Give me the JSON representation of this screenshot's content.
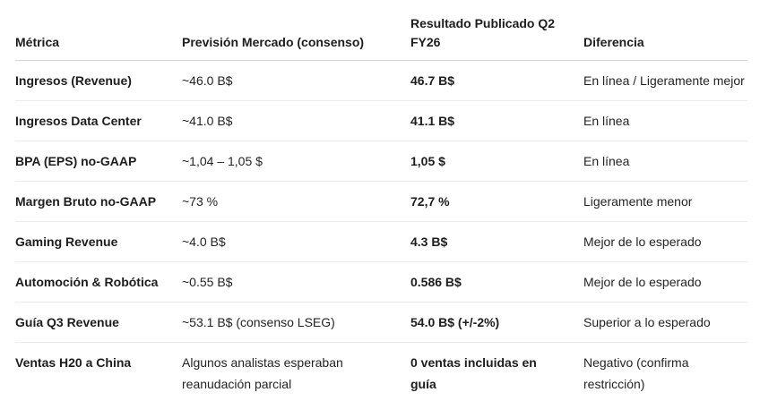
{
  "table": {
    "columns": [
      {
        "label": "Métrica"
      },
      {
        "label": "Previsión Mercado (consenso)"
      },
      {
        "label": "Resultado Publicado Q2\nFY26"
      },
      {
        "label": "Diferencia"
      }
    ],
    "rows": [
      {
        "metric": "Ingresos (Revenue)",
        "forecast": "~46.0 B$",
        "result": "46.7 B$",
        "difference": "En línea / Ligeramente mejor"
      },
      {
        "metric": "Ingresos Data Center",
        "forecast": "~41.0 B$",
        "result": "41.1 B$",
        "difference": "En línea"
      },
      {
        "metric": "BPA (EPS) no-GAAP",
        "forecast": "~1,04 – 1,05 $",
        "result": "1,05 $",
        "difference": "En línea"
      },
      {
        "metric": "Margen Bruto no-GAAP",
        "forecast": "~73 %",
        "result": "72,7 %",
        "difference": "Ligeramente menor"
      },
      {
        "metric": "Gaming Revenue",
        "forecast": "~4.0 B$",
        "result": "4.3 B$",
        "difference": "Mejor de lo esperado"
      },
      {
        "metric": "Automoción & Robótica",
        "forecast": "~0.55 B$",
        "result": "0.586 B$",
        "difference": "Mejor de lo esperado"
      },
      {
        "metric": "Guía Q3 Revenue",
        "forecast": "~53.1 B$ (consenso LSEG)",
        "result": "54.0 B$ (+/-2%)",
        "difference": "Superior a lo esperado"
      },
      {
        "metric": "Ventas H20 a China",
        "forecast": "Algunos analistas esperaban\nreanudación parcial",
        "result": "0 ventas incluidas en\nguía",
        "difference": "Negativo (confirma\nrestricción)"
      }
    ],
    "colors": {
      "text": "#242424",
      "header_rule": "#d6d6d6",
      "row_rule": "#ececec",
      "background": "#ffffff"
    }
  }
}
